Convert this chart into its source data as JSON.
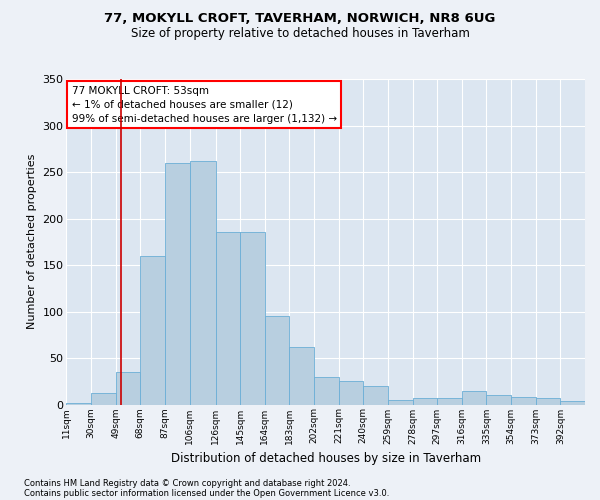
{
  "title1": "77, MOKYLL CROFT, TAVERHAM, NORWICH, NR8 6UG",
  "title2": "Size of property relative to detached houses in Taverham",
  "xlabel": "Distribution of detached houses by size in Taverham",
  "ylabel": "Number of detached properties",
  "footnote1": "Contains HM Land Registry data © Crown copyright and database right 2024.",
  "footnote2": "Contains public sector information licensed under the Open Government Licence v3.0.",
  "annotation_title": "77 MOKYLL CROFT: 53sqm",
  "annotation_line1": "← 1% of detached houses are smaller (12)",
  "annotation_line2": "99% of semi-detached houses are larger (1,132) →",
  "property_size": 53,
  "bar_labels": [
    "11sqm",
    "30sqm",
    "49sqm",
    "68sqm",
    "87sqm",
    "106sqm",
    "126sqm",
    "145sqm",
    "164sqm",
    "183sqm",
    "202sqm",
    "221sqm",
    "240sqm",
    "259sqm",
    "278sqm",
    "297sqm",
    "316sqm",
    "335sqm",
    "354sqm",
    "373sqm",
    "392sqm"
  ],
  "bar_values": [
    2,
    12,
    35,
    160,
    260,
    262,
    185,
    185,
    95,
    62,
    30,
    25,
    20,
    5,
    7,
    7,
    15,
    10,
    8,
    7,
    4
  ],
  "bin_edges": [
    11,
    30,
    49,
    68,
    87,
    106,
    126,
    145,
    164,
    183,
    202,
    221,
    240,
    259,
    278,
    297,
    316,
    335,
    354,
    373,
    392,
    411
  ],
  "bar_color": "#b8cfe0",
  "bar_edgecolor": "#6baed6",
  "property_line_color": "#cc0000",
  "background_color": "#edf1f7",
  "plot_bg_color": "#dce6f1",
  "ylim": [
    0,
    350
  ],
  "yticks": [
    0,
    50,
    100,
    150,
    200,
    250,
    300,
    350
  ]
}
